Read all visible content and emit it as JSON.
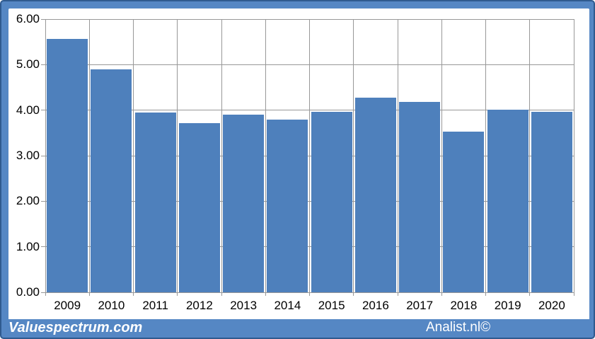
{
  "chart_data": {
    "type": "bar",
    "title": "",
    "categories": [
      "2009",
      "2010",
      "2011",
      "2012",
      "2013",
      "2014",
      "2015",
      "2016",
      "2017",
      "2018",
      "2019",
      "2020"
    ],
    "values": [
      5.56,
      4.9,
      3.95,
      3.71,
      3.9,
      3.79,
      3.96,
      4.28,
      4.18,
      3.53,
      4.01,
      3.96
    ],
    "xlabel": "",
    "ylabel": "",
    "ylim": [
      0,
      6
    ],
    "ytick_step": 1,
    "ytick_labels": [
      "0.00",
      "1.00",
      "2.00",
      "3.00",
      "4.00",
      "5.00",
      "6.00"
    ],
    "grid": true,
    "legend": "none",
    "bar_color": "#4E80BC"
  },
  "footer": {
    "left_text": "Valuespectrum.com",
    "right_text": "Analist.nl©"
  },
  "colors": {
    "frame": "#5587C4",
    "frame_border": "#2F5A8F",
    "gridline": "#989898",
    "panel_bg": "#FFFFFF",
    "label_text": "#000000",
    "footer_text": "#FFFFFF"
  }
}
